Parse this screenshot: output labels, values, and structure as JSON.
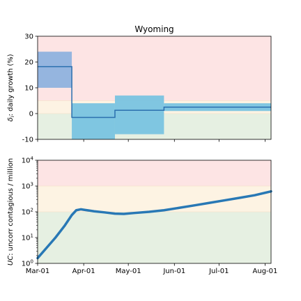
{
  "chart_data": [
    {
      "type": "step",
      "title": "Wyoming",
      "ylabel": "δ: daily growth (%)",
      "ylabel_sub": "i",
      "xlim": [
        "2020-03-01",
        "2020-08-05"
      ],
      "ylim": [
        -10,
        30
      ],
      "yticks": [
        -10,
        0,
        10,
        20,
        30
      ],
      "bands": [
        {
          "y0": -10,
          "y1": 0,
          "color": "#e6f0e2"
        },
        {
          "y0": 0,
          "y1": 5,
          "color": "#fdf3e3"
        },
        {
          "y0": 5,
          "y1": 30,
          "color": "#fde4e4"
        }
      ],
      "segments": [
        {
          "start": "2020-03-01",
          "end": "2020-03-24",
          "value": 18.2,
          "lo": 10,
          "hi": 24,
          "ci_color": "#8fb2de"
        },
        {
          "start": "2020-03-24",
          "end": "2020-04-22",
          "value": -1.5,
          "lo": -10,
          "hi": 4,
          "ci_color": "#79c3e0"
        },
        {
          "start": "2020-04-22",
          "end": "2020-05-25",
          "value": 1.3,
          "lo": -8,
          "hi": 7,
          "ci_color": "#79c3e0"
        },
        {
          "start": "2020-05-25",
          "end": "2020-08-05",
          "value": 2.5,
          "lo": 1,
          "hi": 4,
          "ci_color": "#79c3e0"
        }
      ],
      "line_color": "#2a6fae"
    },
    {
      "type": "line",
      "ylabel": "UC: uncorr contagious / million",
      "ylabel_italic_prefix": "UC",
      "ylabel_rest": ": uncorr contagious / million",
      "yscale": "log",
      "xlim": [
        "2020-03-01",
        "2020-08-05"
      ],
      "ylim": [
        1,
        10000
      ],
      "yticks": [
        {
          "exp": 0,
          "v": 1
        },
        {
          "exp": 1,
          "v": 10
        },
        {
          "exp": 2,
          "v": 100
        },
        {
          "exp": 3,
          "v": 1000
        },
        {
          "exp": 4,
          "v": 10000
        }
      ],
      "bands": [
        {
          "y0": 1,
          "y1": 100,
          "color": "#e6f0e2"
        },
        {
          "y0": 100,
          "y1": 1000,
          "color": "#fdf3e3"
        },
        {
          "y0": 1000,
          "y1": 10000,
          "color": "#fde4e4"
        }
      ],
      "series": [
        {
          "color": "#2878b5",
          "points": [
            [
              "2020-03-01",
              1.6
            ],
            [
              "2020-03-07",
              4
            ],
            [
              "2020-03-13",
              10
            ],
            [
              "2020-03-19",
              28
            ],
            [
              "2020-03-24",
              75
            ],
            [
              "2020-03-27",
              115
            ],
            [
              "2020-03-30",
              125
            ],
            [
              "2020-04-02",
              118
            ],
            [
              "2020-04-08",
              105
            ],
            [
              "2020-04-15",
              95
            ],
            [
              "2020-04-22",
              85
            ],
            [
              "2020-04-28",
              83
            ],
            [
              "2020-05-05",
              90
            ],
            [
              "2020-05-15",
              100
            ],
            [
              "2020-05-25",
              115
            ],
            [
              "2020-06-05",
              145
            ],
            [
              "2020-06-15",
              180
            ],
            [
              "2020-06-25",
              225
            ],
            [
              "2020-07-05",
              280
            ],
            [
              "2020-07-15",
              350
            ],
            [
              "2020-07-25",
              440
            ],
            [
              "2020-08-05",
              620
            ]
          ]
        }
      ]
    }
  ],
  "xticks": [
    {
      "date": "2020-03-01",
      "label": "Mar-01"
    },
    {
      "date": "2020-04-01",
      "label": "Apr-01"
    },
    {
      "date": "2020-05-01",
      "label": "May-01"
    },
    {
      "date": "2020-06-01",
      "label": "Jun-01"
    },
    {
      "date": "2020-07-01",
      "label": "Jul-01"
    },
    {
      "date": "2020-08-01",
      "label": "Aug-01"
    }
  ]
}
